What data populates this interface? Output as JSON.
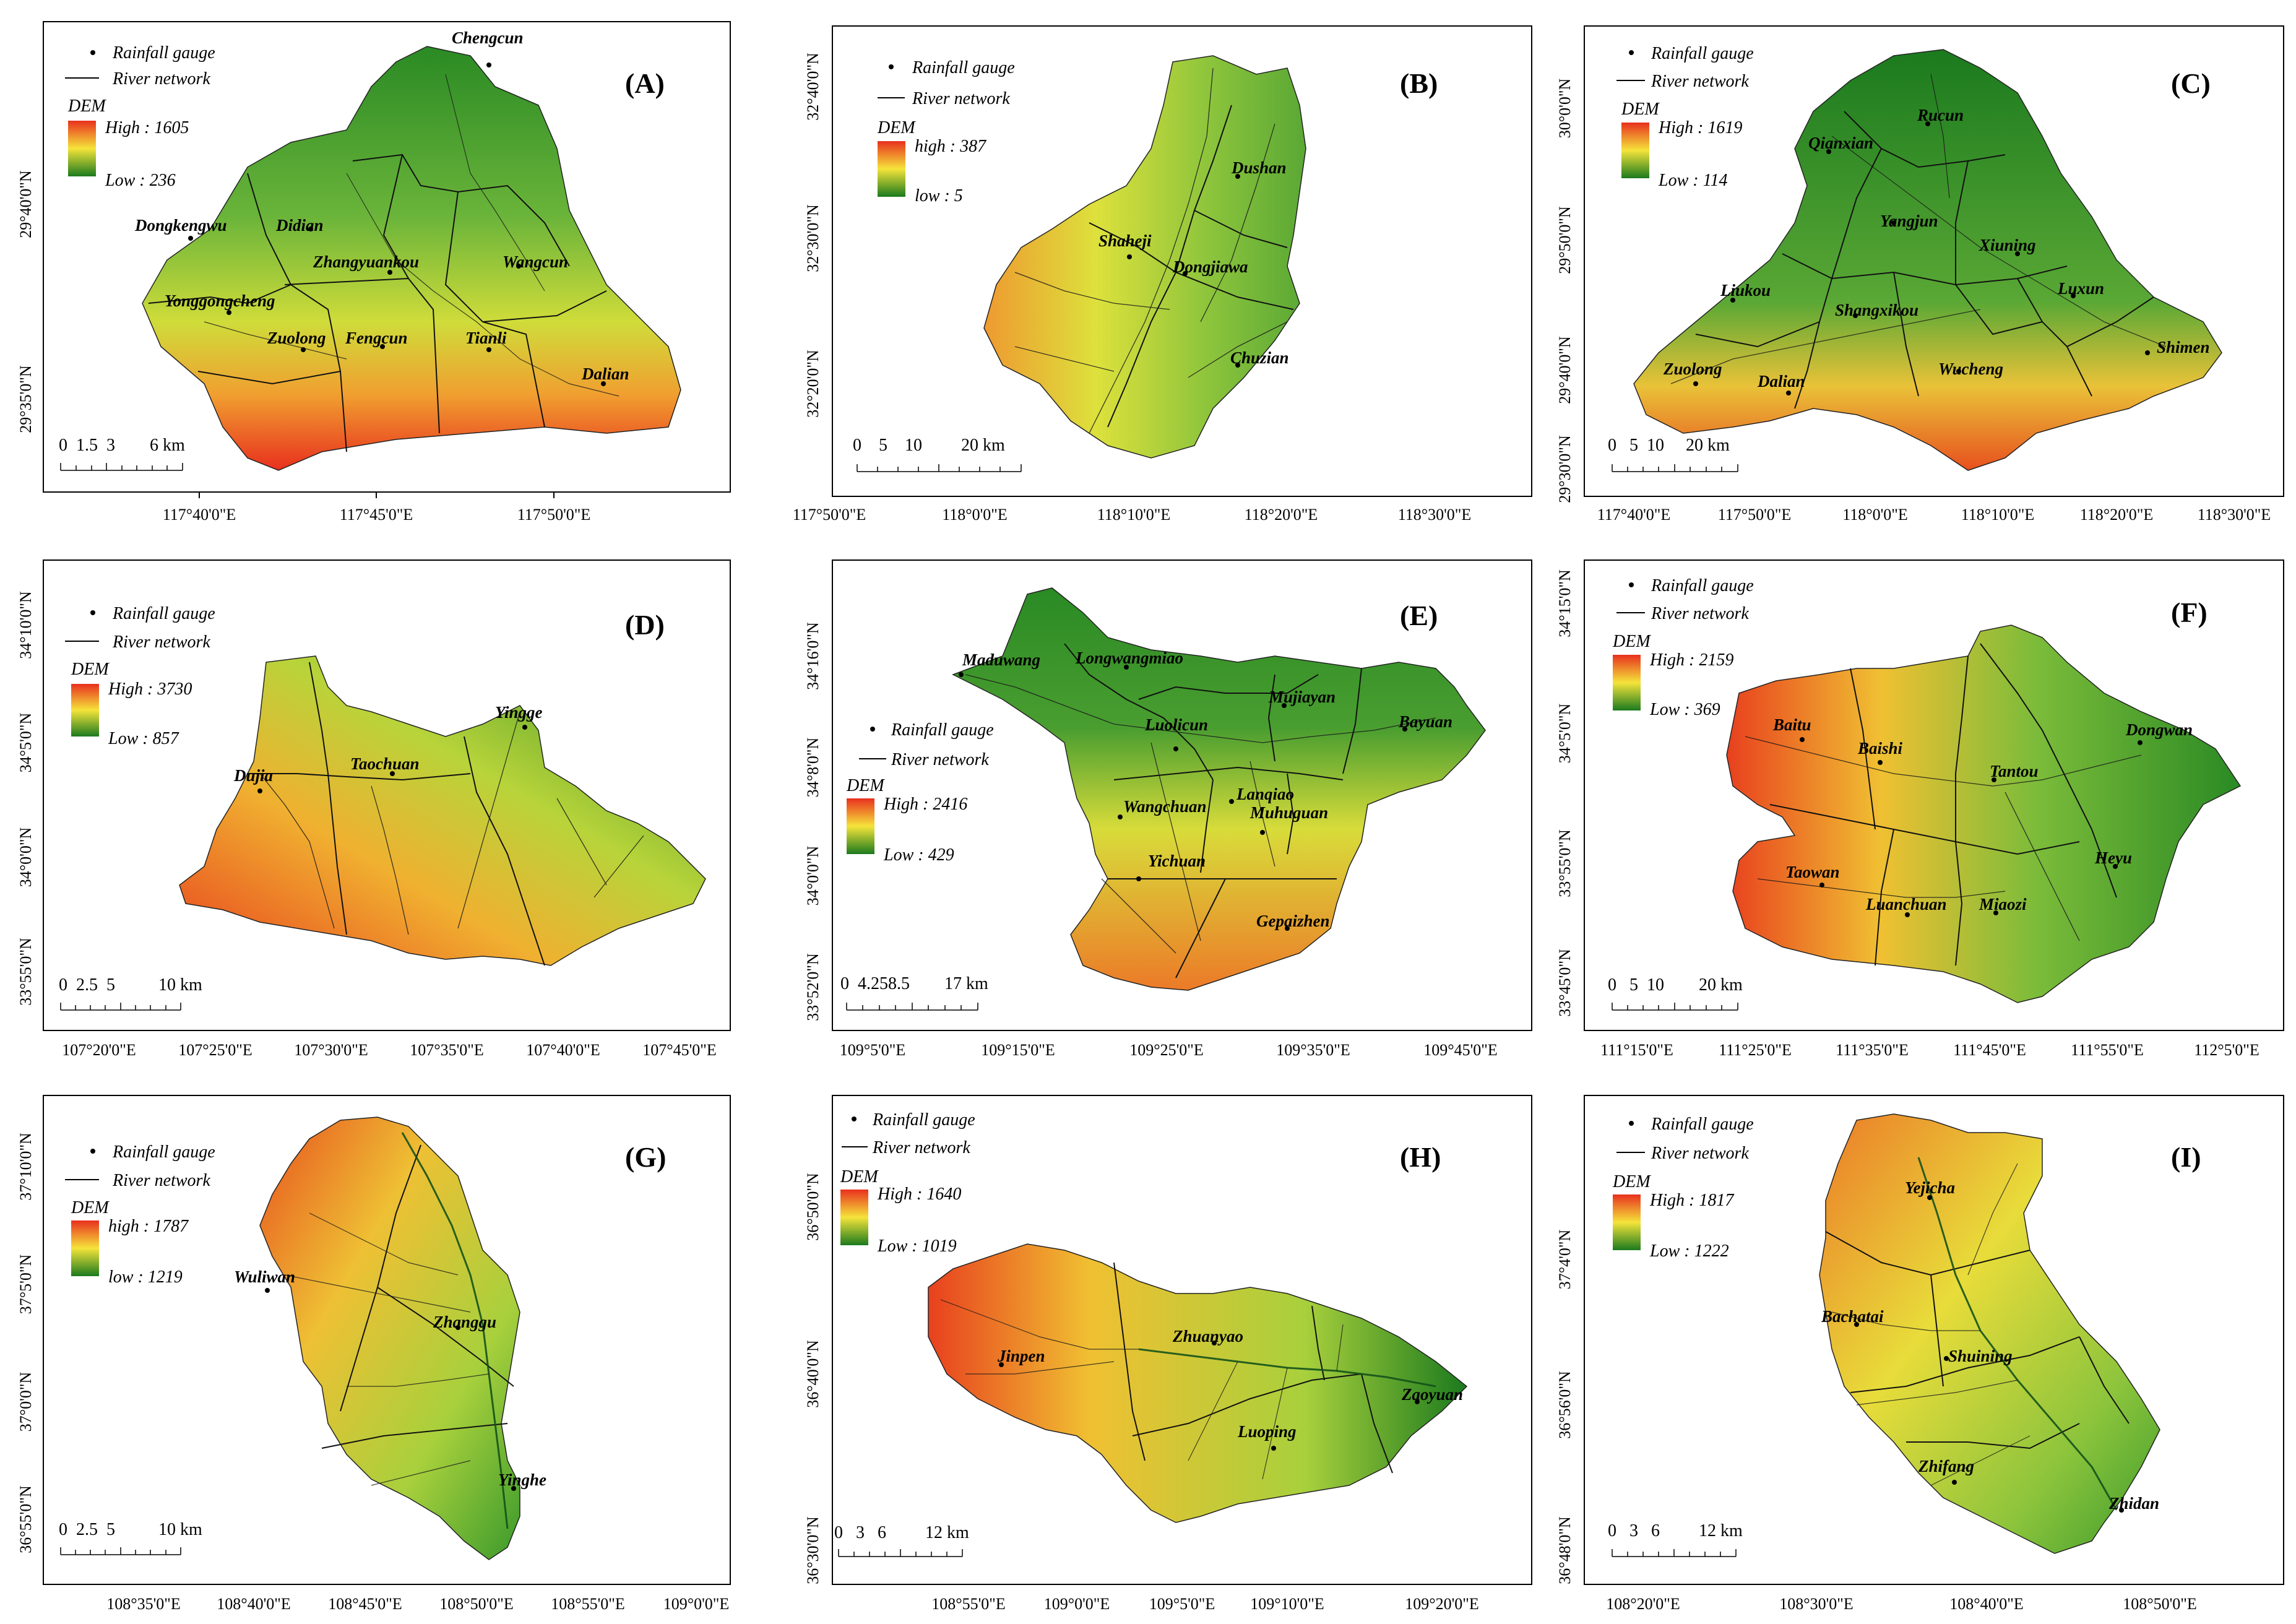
{
  "colors": {
    "high": "#e8301e",
    "mid": "#f5e43a",
    "low": "#1b7a1e",
    "border": "#000000",
    "river": "#1a1a1a"
  },
  "panels": [
    {
      "letter": "(A)",
      "gauge_label": "Rainfall gauge",
      "river_label": "River network",
      "dem_label": "DEM",
      "dem_high": "High : 1605",
      "dem_low": "Low : 236",
      "scale_text": "0  1.5  3        6 km",
      "x_ticks": [
        "117°40'0\"E",
        "117°45'0\"E",
        "117°50'0\"E"
      ],
      "y_ticks": [
        "29°40'0\"N",
        "29°35'0\"N"
      ],
      "stations": [
        "Chengcun",
        "Dongkengwu",
        "Didian",
        "Zhangyuankou",
        "Wangcun",
        "Yonggongcheng",
        "Zuolong",
        "Fengcun",
        "Tianli",
        "Dalian"
      ]
    },
    {
      "letter": "(B)",
      "gauge_label": "Rainfall gauge",
      "river_label": "River network",
      "dem_label": "DEM",
      "dem_high": "high : 387",
      "dem_low": "low : 5",
      "scale_text": "0    5    10         20 km",
      "x_ticks": [
        "117°50'0\"E",
        "118°0'0\"E",
        "118°10'0\"E",
        "118°20'0\"E",
        "118°30'0\"E"
      ],
      "y_ticks": [
        "32°40'0\"N",
        "32°30'0\"N",
        "32°20'0\"N"
      ],
      "stations": [
        "Dushan",
        "Shaheji",
        "Dongjiawa",
        "Chuzian"
      ]
    },
    {
      "letter": "(C)",
      "gauge_label": "Rainfall gauge",
      "river_label": "River network",
      "dem_label": "DEM",
      "dem_high": "High : 1619",
      "dem_low": "Low : 114",
      "scale_text": "0   5  10     20 km",
      "x_ticks": [
        "117°40'0\"E",
        "117°50'0\"E",
        "118°0'0\"E",
        "118°10'0\"E",
        "118°20'0\"E",
        "118°30'0\"E"
      ],
      "y_ticks": [
        "30°0'0\"N",
        "29°50'0\"N",
        "29°40'0\"N",
        "29°30'0\"N"
      ],
      "stations": [
        "Rucun",
        "Qianxian",
        "Yangjun",
        "Xiuning",
        "Luxun",
        "Liukou",
        "Shangxikou",
        "Zuolong",
        "Dalian",
        "Wucheng",
        "Shimen"
      ]
    },
    {
      "letter": "(D)",
      "gauge_label": "Rainfall gauge",
      "river_label": "River network",
      "dem_label": "DEM",
      "dem_high": "High : 3730",
      "dem_low": "Low : 857",
      "scale_text": "0  2.5  5          10 km",
      "x_ticks": [
        "107°20'0\"E",
        "107°25'0\"E",
        "107°30'0\"E",
        "107°35'0\"E",
        "107°40'0\"E",
        "107°45'0\"E"
      ],
      "y_ticks": [
        "34°10'0\"N",
        "34°5'0\"N",
        "34°0'0\"N",
        "33°55'0\"N"
      ],
      "stations": [
        "Yingge",
        "Dujia",
        "Taochuan"
      ]
    },
    {
      "letter": "(E)",
      "gauge_label": "Rainfall gauge",
      "river_label": "River network",
      "dem_label": "DEM",
      "dem_high": "High : 2416",
      "dem_low": "Low : 429",
      "scale_text": "0  4.258.5        17 km",
      "x_ticks": [
        "109°5'0\"E",
        "109°15'0\"E",
        "109°25'0\"E",
        "109°35'0\"E",
        "109°45'0\"E"
      ],
      "y_ticks": [
        "34°16'0\"N",
        "34°8'0\"N",
        "34°0'0\"N",
        "33°52'0\"N"
      ],
      "stations": [
        "Maduwang",
        "Longwangmiao",
        "Mujiayan",
        "Bayuan",
        "Luolicun",
        "Lanqiao",
        "Wangchuan",
        "Muhuguan",
        "Yichuan",
        "Gepaizhen"
      ]
    },
    {
      "letter": "(F)",
      "gauge_label": "Rainfall gauge",
      "river_label": "River network",
      "dem_label": "DEM",
      "dem_high": "High : 2159",
      "dem_low": "Low : 369",
      "scale_text": "0   5  10        20 km",
      "x_ticks": [
        "111°15'0\"E",
        "111°25'0\"E",
        "111°35'0\"E",
        "111°45'0\"E",
        "111°55'0\"E",
        "112°5'0\"E"
      ],
      "y_ticks": [
        "34°15'0\"N",
        "34°5'0\"N",
        "33°55'0\"N",
        "33°45'0\"N"
      ],
      "stations": [
        "Baitu",
        "Baishi",
        "Tantou",
        "Dongwan",
        "Taowan",
        "Luanchuan",
        "Miaozi",
        "Heyu"
      ]
    },
    {
      "letter": "(G)",
      "gauge_label": "Rainfall gauge",
      "river_label": "River network",
      "dem_label": "DEM",
      "dem_high": "high : 1787",
      "dem_low": "low : 1219",
      "scale_text": "0  2.5  5          10 km",
      "x_ticks": [
        "108°35'0\"E",
        "108°40'0\"E",
        "108°45'0\"E",
        "108°50'0\"E",
        "108°55'0\"E",
        "109°0'0\"E"
      ],
      "y_ticks": [
        "37°10'0\"N",
        "37°5'0\"N",
        "37°0'0\"N",
        "36°55'0\"N"
      ],
      "stations": [
        "Wuliwan",
        "Zhanggu",
        "Yinghe"
      ]
    },
    {
      "letter": "(H)",
      "gauge_label": "Rainfall gauge",
      "river_label": "River network",
      "dem_label": "DEM",
      "dem_high": "High : 1640",
      "dem_low": "Low : 1019",
      "scale_text": "0   3   6         12 km",
      "x_ticks": [
        "108°55'0\"E",
        "109°0'0\"E",
        "109°5'0\"E",
        "109°10'0\"E",
        "109°20'0\"E"
      ],
      "y_ticks": [
        "36°50'0\"N",
        "36°40'0\"N",
        "36°30'0\"N"
      ],
      "stations": [
        "Jinpen",
        "Zhuanyao",
        "Zaoyuan",
        "Luoping"
      ]
    },
    {
      "letter": "(I)",
      "gauge_label": "Rainfall gauge",
      "river_label": "River network",
      "dem_label": "DEM",
      "dem_high": "High : 1817",
      "dem_low": "Low : 1222",
      "scale_text": "0   3   6         12 km",
      "x_ticks": [
        "108°20'0\"E",
        "108°30'0\"E",
        "108°40'0\"E",
        "108°50'0\"E"
      ],
      "y_ticks": [
        "37°4'0\"N",
        "36°56'0\"N",
        "36°48'0\"N"
      ],
      "stations": [
        "Yejicha",
        "Bachatai",
        "Shuining",
        "Zhifang",
        "Zhidan"
      ]
    }
  ]
}
